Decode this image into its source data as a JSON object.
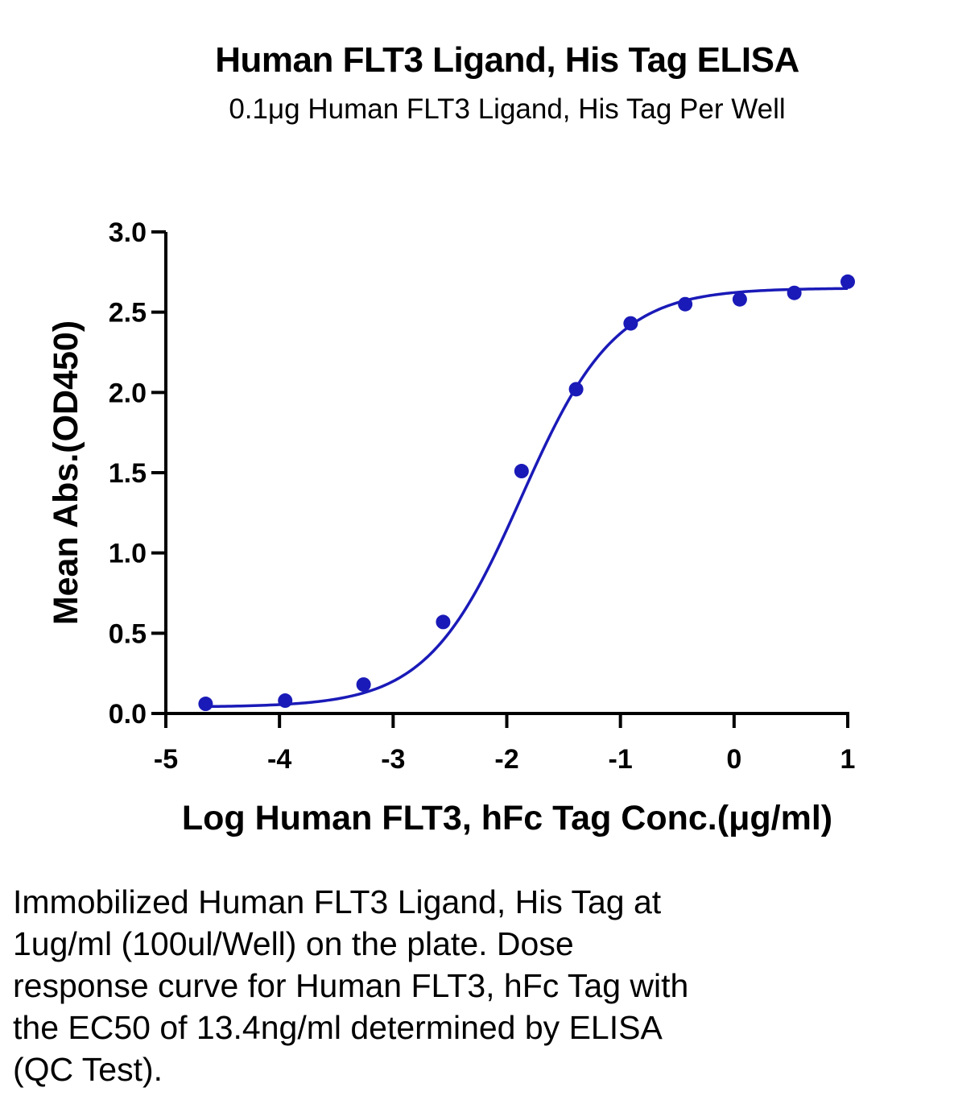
{
  "chart_data": {
    "type": "scatter",
    "title": "Human FLT3 Ligand, His Tag ELISA",
    "subtitle": "0.1μg Human FLT3 Ligand, His Tag Per Well",
    "xlabel": "Log Human FLT3, hFc Tag Conc.(μg/ml)",
    "ylabel": "Mean Abs.(OD450)",
    "xlim": [
      -5,
      1
    ],
    "ylim": [
      0,
      3.0
    ],
    "x_ticks": [
      "-5",
      "-4",
      "-3",
      "-2",
      "-1",
      "0",
      "1"
    ],
    "y_ticks": [
      "0.0",
      "0.5",
      "1.0",
      "1.5",
      "2.0",
      "2.5",
      "3.0"
    ],
    "grid": false,
    "color": "#1a1ab8",
    "series": [
      {
        "x": [
          -4.65,
          -3.95,
          -3.26,
          -2.56,
          -1.87,
          -1.39,
          -0.91,
          -0.43,
          0.05,
          0.53,
          1.0
        ],
        "y": [
          0.06,
          0.08,
          0.18,
          0.57,
          1.51,
          2.02,
          2.43,
          2.55,
          2.58,
          2.62,
          2.69
        ]
      }
    ],
    "fit_curve": {
      "model": "4PL",
      "bottom": 0.04,
      "top": 2.65,
      "log_ec50": -1.873,
      "hill": 1.05
    }
  },
  "caption": {
    "lines": [
      "Immobilized Human FLT3 Ligand, His Tag at",
      "1ug/ml (100ul/Well) on the plate. Dose",
      "response curve for Human FLT3, hFc Tag with",
      "the EC50 of 13.4ng/ml determined by ELISA",
      "(QC Test)."
    ]
  }
}
